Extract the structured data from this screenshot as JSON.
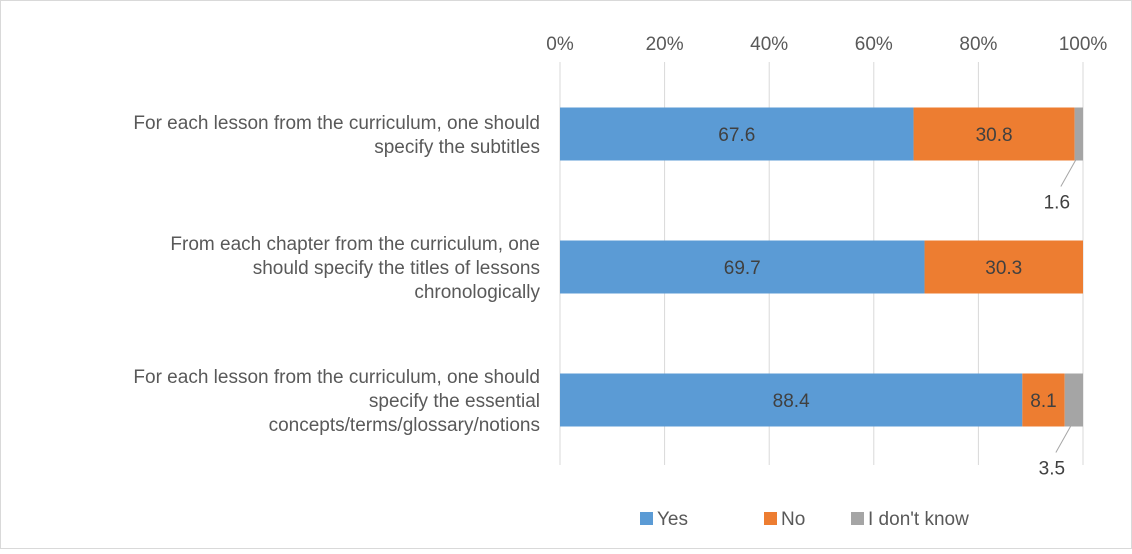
{
  "chart_data": {
    "type": "bar",
    "orientation": "horizontal",
    "stacked": true,
    "categories": [
      "For each lesson from the curriculum, one should specify the subtitles",
      "From each chapter from the curriculum, one should specify the titles of lessons chronologically",
      "For each lesson from the curriculum, one should specify the essential concepts/terms/glossary/notions"
    ],
    "category_lines": [
      [
        "For each lesson from the curriculum, one should",
        "specify the subtitles"
      ],
      [
        "From each chapter from the curriculum, one",
        "should specify the titles of lessons",
        "chronologically"
      ],
      [
        "For each lesson from the curriculum, one should",
        "specify the essential",
        "concepts/terms/glossary/notions"
      ]
    ],
    "series": [
      {
        "name": "Yes",
        "color": "#5b9bd5",
        "values": [
          67.6,
          69.7,
          88.4
        ],
        "labels": [
          "67.6",
          "69.7",
          "88.4"
        ]
      },
      {
        "name": "No",
        "color": "#ed7d31",
        "values": [
          30.8,
          30.3,
          8.1
        ],
        "labels": [
          "30.8",
          "30.3",
          "8.1"
        ]
      },
      {
        "name": "I don't know",
        "color": "#a5a5a5",
        "values": [
          1.6,
          0,
          3.5
        ],
        "labels": [
          "1.6",
          "",
          "3.5"
        ]
      }
    ],
    "x_ticks": [
      "0%",
      "20%",
      "40%",
      "60%",
      "80%",
      "100%"
    ],
    "xlim": [
      0,
      100
    ],
    "x_axis_position": "top",
    "grid": true,
    "legend_position": "bottom",
    "title": "",
    "xlabel": "",
    "ylabel": ""
  }
}
